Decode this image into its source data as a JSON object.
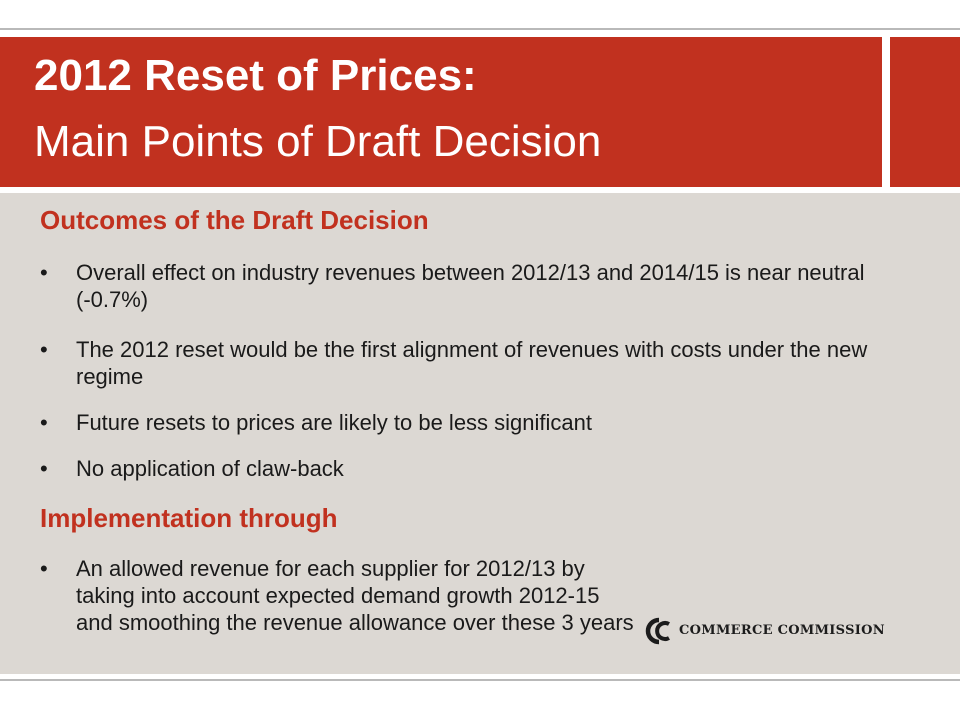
{
  "title": {
    "line1": "2012 Reset of Prices:",
    "line2": "Main Points of Draft Decision"
  },
  "sections": [
    {
      "heading": "Outcomes of the Draft Decision",
      "bullets": [
        "Overall effect on industry revenues between 2012/13 and 2014/15 is near neutral (-0.7%)",
        "The 2012 reset would be the first alignment of revenues with costs under the new regime",
        "Future resets to prices are likely to be less significant",
        "No application of claw-back"
      ]
    },
    {
      "heading": "Implementation through",
      "bullets": [
        "An allowed revenue for each supplier for 2012/13 by taking into account expected demand growth 2012-15 and smoothing the revenue allowance over these 3 years"
      ]
    }
  ],
  "bullet_glyph": "•",
  "logo": {
    "text": "COMMERCE COMMISSION",
    "icon": "commerce-commission-logo-icon"
  },
  "colors": {
    "brand_red": "#c1311f",
    "content_bg": "#dcd8d3",
    "text": "#1a1a1a"
  }
}
